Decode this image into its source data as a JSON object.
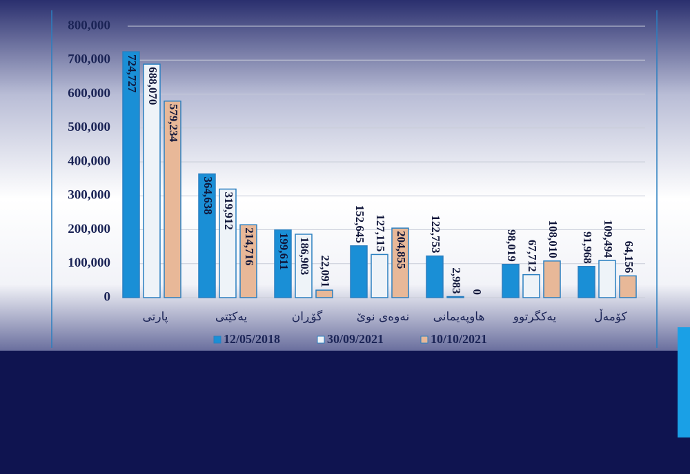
{
  "chart_data": {
    "type": "bar",
    "categories": [
      "پارتی",
      "یەکێتی",
      "گۆڕان",
      "نەوەی نوێ",
      "هاوپەیمانی",
      "یەکگرتوو",
      "کۆمەڵ"
    ],
    "series": [
      {
        "name": "12/05/2018",
        "color": "#1a8fd6",
        "values": [
          724727,
          364638,
          199611,
          152645,
          122753,
          98019,
          91968
        ],
        "value_labels": [
          "724,727",
          "364,638",
          "199,611",
          "152,645",
          "122,753",
          "98,019",
          "91,968"
        ]
      },
      {
        "name": "30/09/2021",
        "color": "#eef3f8",
        "values": [
          688070,
          319912,
          186903,
          127115,
          2983,
          67712,
          109494
        ],
        "value_labels": [
          "688,070",
          "319,912",
          "186,903",
          "127,115",
          "2,983",
          "67,712",
          "109,494"
        ]
      },
      {
        "name": "10/10/2021",
        "color": "#e8b898",
        "values": [
          579234,
          214716,
          22091,
          204855,
          0,
          108010,
          64156
        ],
        "value_labels": [
          "579,234",
          "214,716",
          "22,091",
          "204,855",
          "0",
          "108,010",
          "64,156"
        ]
      }
    ],
    "ylim": [
      0,
      800000
    ],
    "yticks": [
      0,
      {
        "value": 100000,
        "label": "100,000"
      },
      {
        "value": 200000,
        "label": "200,000"
      },
      {
        "value": 300000,
        "label": "300,000"
      },
      {
        "value": 400000,
        "label": "400,000"
      },
      {
        "value": 500000,
        "label": "500,000"
      },
      {
        "value": 600000,
        "label": "600,000"
      },
      {
        "value": 700000,
        "label": "700,000"
      },
      {
        "value": 800000,
        "label": "800,000"
      }
    ],
    "grid": true
  }
}
